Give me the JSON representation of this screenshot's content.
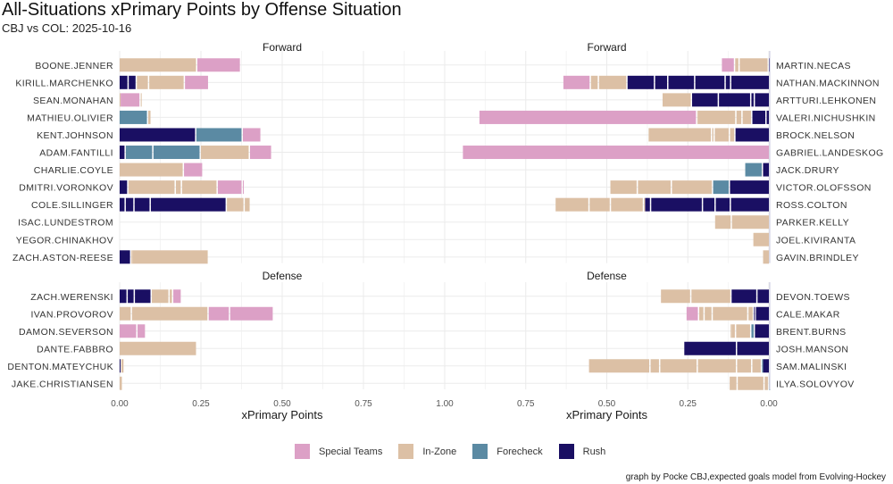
{
  "chart_data": {
    "type": "bar",
    "orientation": "horizontal-stacked",
    "title": "All-Situations xPrimary Points by Offense Situation",
    "subtitle": "CBJ vs COL: 2025-10-16",
    "xlabel": "xPrimary Points",
    "xlim": [
      0,
      1.0
    ],
    "x_ticks": [
      "0.00",
      "0.25",
      "0.50",
      "0.75",
      "1.00"
    ],
    "grid": true,
    "legend_position": "bottom",
    "legend": [
      {
        "name": "Special Teams",
        "color": "#dca0c6"
      },
      {
        "name": "In-Zone",
        "color": "#dcc0a5"
      },
      {
        "name": "Forecheck",
        "color": "#5b8aa3"
      },
      {
        "name": "Rush",
        "color": "#1a0f63"
      }
    ],
    "caption": "graph by Pocke CBJ,expected goals model from Evolving-Hockey",
    "panels": [
      {
        "team": "CBJ",
        "side": "left",
        "groups": [
          {
            "label": "Forward",
            "players": [
              {
                "name": "BOONE.JENNER",
                "segments": [
                  [
                    "In-Zone",
                    0.239
                  ],
                  [
                    "Special Teams",
                    0.135
                  ]
                ]
              },
              {
                "name": "KIRILL.MARCHENKO",
                "segments": [
                  [
                    "Rush",
                    0.028
                  ],
                  [
                    "Rush",
                    0.025
                  ],
                  [
                    "In-Zone",
                    0.038
                  ],
                  [
                    "In-Zone",
                    0.11
                  ],
                  [
                    "Special Teams",
                    0.075
                  ]
                ]
              },
              {
                "name": "SEAN.MONAHAN",
                "segments": [
                  [
                    "In-Zone",
                    0.003
                  ],
                  [
                    "Special Teams",
                    0.062
                  ],
                  [
                    "In-Zone",
                    0.003
                  ]
                ]
              },
              {
                "name": "MATHIEU.OLIVIER",
                "segments": [
                  [
                    "Forecheck",
                    0.088
                  ],
                  [
                    "In-Zone",
                    0.011
                  ]
                ]
              },
              {
                "name": "KENT.JOHNSON",
                "segments": [
                  [
                    "Rush",
                    0.236
                  ],
                  [
                    "Forecheck",
                    0.143
                  ],
                  [
                    "Special Teams",
                    0.058
                  ]
                ]
              },
              {
                "name": "ADAM.FANTILLI",
                "segments": [
                  [
                    "Rush",
                    0.019
                  ],
                  [
                    "Forecheck",
                    0.085
                  ],
                  [
                    "Forecheck",
                    0.146
                  ],
                  [
                    "In-Zone",
                    0.151
                  ],
                  [
                    "Special Teams",
                    0.069
                  ]
                ]
              },
              {
                "name": "CHARLIE.COYLE",
                "segments": [
                  [
                    "In-Zone",
                    0.198
                  ],
                  [
                    "Special Teams",
                    0.06
                  ]
                ]
              },
              {
                "name": "DMITRI.VORONKOV",
                "segments": [
                  [
                    "Rush",
                    0.027
                  ],
                  [
                    "In-Zone",
                    0.146
                  ],
                  [
                    "In-Zone",
                    0.019
                  ],
                  [
                    "In-Zone",
                    0.11
                  ],
                  [
                    "Special Teams",
                    0.077
                  ],
                  [
                    "Special Teams",
                    0.003
                  ]
                ]
              },
              {
                "name": "COLE.SILLINGER",
                "segments": [
                  [
                    "Rush",
                    0.019
                  ],
                  [
                    "Rush",
                    0.027
                  ],
                  [
                    "Rush",
                    0.05
                  ],
                  [
                    "Rush",
                    0.234
                  ],
                  [
                    "In-Zone",
                    0.055
                  ],
                  [
                    "In-Zone",
                    0.019
                  ]
                ]
              },
              {
                "name": "ISAC.LUNDESTROM",
                "segments": []
              },
              {
                "name": "YEGOR.CHINAKHOV",
                "segments": []
              },
              {
                "name": "ZACH.ASTON-REESE",
                "segments": [
                  [
                    "Rush",
                    0.036
                  ],
                  [
                    "In-Zone",
                    0.003
                  ],
                  [
                    "In-Zone",
                    0.236
                  ]
                ]
              }
            ]
          },
          {
            "label": "Defense",
            "players": [
              {
                "name": "ZACH.WERENSKI",
                "segments": [
                  [
                    "Rush",
                    0.025
                  ],
                  [
                    "Rush",
                    0.022
                  ],
                  [
                    "Rush",
                    0.052
                  ],
                  [
                    "In-Zone",
                    0.055
                  ],
                  [
                    "In-Zone",
                    0.011
                  ],
                  [
                    "Special Teams",
                    0.027
                  ]
                ]
              },
              {
                "name": "IVAN.PROVOROV",
                "segments": [
                  [
                    "In-Zone",
                    0.038
                  ],
                  [
                    "In-Zone",
                    0.236
                  ],
                  [
                    "Special Teams",
                    0.066
                  ],
                  [
                    "Special Teams",
                    0.135
                  ]
                ]
              },
              {
                "name": "DAMON.SEVERSON",
                "segments": [
                  [
                    "Special Teams",
                    0.055
                  ],
                  [
                    "Special Teams",
                    0.027
                  ]
                ]
              },
              {
                "name": "DANTE.FABBRO",
                "segments": [
                  [
                    "In-Zone",
                    0.239
                  ]
                ]
              },
              {
                "name": "DENTON.MATEYCHUK",
                "segments": [
                  [
                    "Rush",
                    0.005
                  ],
                  [
                    "In-Zone",
                    0.011
                  ]
                ]
              },
              {
                "name": "JAKE.CHRISTIANSEN",
                "segments": [
                  [
                    "In-Zone",
                    0.011
                  ]
                ]
              }
            ]
          }
        ]
      },
      {
        "team": "COL",
        "side": "right",
        "groups": [
          {
            "label": "Forward",
            "players": [
              {
                "name": "MARTIN.NECAS",
                "segments": [
                  [
                    "Rush",
                    0.004
                  ],
                  [
                    "In-Zone",
                    0.09
                  ],
                  [
                    "In-Zone",
                    0.014
                  ],
                  [
                    "Special Teams",
                    0.041
                  ]
                ]
              },
              {
                "name": "NATHAN.MACKINNON",
                "segments": [
                  [
                    "Rush",
                    0.12
                  ],
                  [
                    "Rush",
                    0.017
                  ],
                  [
                    "Rush",
                    0.094
                  ],
                  [
                    "Rush",
                    0.083
                  ],
                  [
                    "Rush",
                    0.041
                  ],
                  [
                    "Rush",
                    0.085
                  ],
                  [
                    "In-Zone",
                    0.088
                  ],
                  [
                    "In-Zone",
                    0.025
                  ],
                  [
                    "Special Teams",
                    0.085
                  ]
                ]
              },
              {
                "name": "ARTTURI.LEHKONEN",
                "segments": [
                  [
                    "Rush",
                    0.047
                  ],
                  [
                    "Rush",
                    0.011
                  ],
                  [
                    "Rush",
                    0.1
                  ],
                  [
                    "Rush",
                    0.083
                  ],
                  [
                    "In-Zone",
                    0.091
                  ]
                ]
              },
              {
                "name": "VALERI.NICHUSHKIN",
                "segments": [
                  [
                    "Rush",
                    0.011
                  ],
                  [
                    "Rush",
                    0.044
                  ],
                  [
                    "In-Zone",
                    0.03
                  ],
                  [
                    "In-Zone",
                    0.019
                  ],
                  [
                    "In-Zone",
                    0.118
                  ],
                  [
                    "In-Zone",
                    0.003
                  ],
                  [
                    "Special Teams",
                    0.672
                  ]
                ]
              },
              {
                "name": "BROCK.NELSON",
                "segments": [
                  [
                    "Rush",
                    0.107
                  ],
                  [
                    "In-Zone",
                    0.017
                  ],
                  [
                    "In-Zone",
                    0.047
                  ],
                  [
                    "In-Zone",
                    0.008
                  ],
                  [
                    "In-Zone",
                    0.196
                  ]
                ]
              },
              {
                "name": "GABRIEL.LANDESKOG",
                "segments": [
                  [
                    "Special Teams",
                    0.948
                  ]
                ]
              },
              {
                "name": "JACK.DRURY",
                "segments": [
                  [
                    "Rush",
                    0.022
                  ],
                  [
                    "Forecheck",
                    0.055
                  ]
                ]
              },
              {
                "name": "VICTOR.OLOFSSON",
                "segments": [
                  [
                    "Rush",
                    0.124
                  ],
                  [
                    "Forecheck",
                    0.052
                  ],
                  [
                    "In-Zone",
                    0.127
                  ],
                  [
                    "In-Zone",
                    0.105
                  ],
                  [
                    "In-Zone",
                    0.085
                  ]
                ]
              },
              {
                "name": "ROSS.COLTON",
                "segments": [
                  [
                    "Rush",
                    0.121
                  ],
                  [
                    "Rush",
                    0.047
                  ],
                  [
                    "Rush",
                    0.039
                  ],
                  [
                    "Rush",
                    0.16
                  ],
                  [
                    "Rush",
                    0.019
                  ],
                  [
                    "In-Zone",
                    0.003
                  ],
                  [
                    "In-Zone",
                    0.102
                  ],
                  [
                    "In-Zone",
                    0.066
                  ],
                  [
                    "In-Zone",
                    0.105
                  ]
                ]
              },
              {
                "name": "PARKER.KELLY",
                "segments": [
                  [
                    "In-Zone",
                    0.118
                  ],
                  [
                    "In-Zone",
                    0.052
                  ]
                ]
              },
              {
                "name": "JOEL.KIVIRANTA",
                "segments": [
                  [
                    "In-Zone",
                    0.052
                  ]
                ]
              },
              {
                "name": "GAVIN.BRINDLEY",
                "segments": [
                  [
                    "In-Zone",
                    0.022
                  ]
                ]
              }
            ]
          },
          {
            "label": "Defense",
            "players": [
              {
                "name": "DEVON.TOEWS",
                "segments": [
                  [
                    "Rush",
                    0.039
                  ],
                  [
                    "Rush",
                    0.08
                  ],
                  [
                    "In-Zone",
                    0.124
                  ],
                  [
                    "In-Zone",
                    0.094
                  ]
                ]
              },
              {
                "name": "CALE.MAKAR",
                "segments": [
                  [
                    "Rush",
                    0.044
                  ],
                  [
                    "Rush",
                    0.006
                  ],
                  [
                    "In-Zone",
                    0.017
                  ],
                  [
                    "In-Zone",
                    0.11
                  ],
                  [
                    "In-Zone",
                    0.025
                  ],
                  [
                    "In-Zone",
                    0.017
                  ],
                  [
                    "Special Teams",
                    0.039
                  ]
                ]
              },
              {
                "name": "BRENT.BURNS",
                "segments": [
                  [
                    "Rush",
                    0.047
                  ],
                  [
                    "Forecheck",
                    0.011
                  ],
                  [
                    "In-Zone",
                    0.047
                  ],
                  [
                    "In-Zone",
                    0.014
                  ],
                  [
                    "In-Zone",
                    0.003
                  ]
                ]
              },
              {
                "name": "JOSH.MANSON",
                "segments": [
                  [
                    "Rush",
                    0.102
                  ],
                  [
                    "Rush",
                    0.163
                  ]
                ]
              },
              {
                "name": "SAM.MALINSKI",
                "segments": [
                  [
                    "Rush",
                    0.022
                  ],
                  [
                    "Forecheck",
                    0.003
                  ],
                  [
                    "In-Zone",
                    0.03
                  ],
                  [
                    "In-Zone",
                    0.047
                  ],
                  [
                    "In-Zone",
                    0.121
                  ],
                  [
                    "In-Zone",
                    0.116
                  ],
                  [
                    "In-Zone",
                    0.03
                  ],
                  [
                    "In-Zone",
                    0.19
                  ]
                ]
              },
              {
                "name": "ILYA.SOLOVYOV",
                "segments": [
                  [
                    "Forecheck",
                    0.003
                  ],
                  [
                    "In-Zone",
                    0.014
                  ],
                  [
                    "In-Zone",
                    0.083
                  ],
                  [
                    "In-Zone",
                    0.025
                  ]
                ]
              }
            ]
          }
        ]
      }
    ]
  }
}
